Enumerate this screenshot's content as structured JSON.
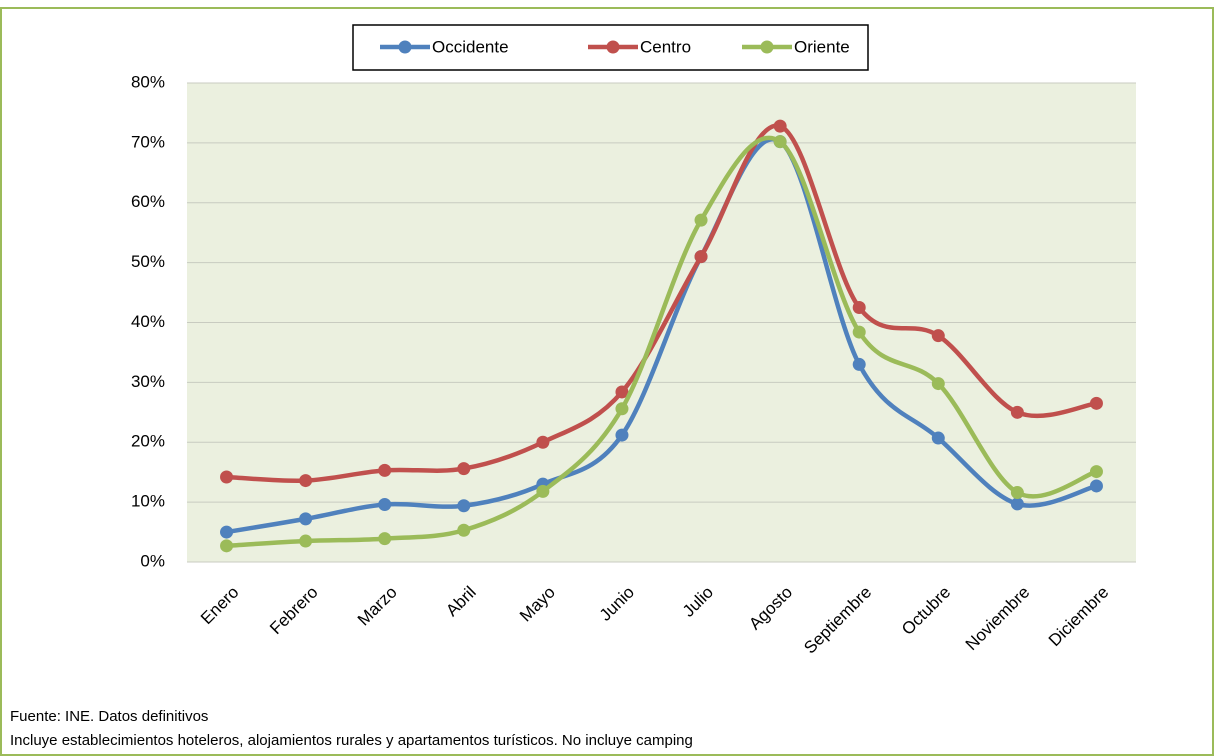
{
  "chart_data": {
    "type": "line",
    "smooth": true,
    "categories": [
      "Enero",
      "Febrero",
      "Marzo",
      "Abril",
      "Mayo",
      "Junio",
      "Julio",
      "Agosto",
      "Septiembre",
      "Octubre",
      "Noviembre",
      "Diciembre"
    ],
    "series": [
      {
        "name": "Occidente",
        "color": "#4f81bd",
        "values": [
          5.0,
          7.2,
          9.6,
          9.4,
          13.0,
          21.2,
          51.0,
          70.2,
          33.0,
          20.7,
          9.7,
          12.7
        ]
      },
      {
        "name": "Centro",
        "color": "#c0504d",
        "values": [
          14.2,
          13.6,
          15.3,
          15.6,
          20.0,
          28.4,
          51.0,
          72.8,
          42.5,
          37.8,
          25.0,
          26.5
        ]
      },
      {
        "name": "Oriente",
        "color": "#9bbb59",
        "values": [
          2.7,
          3.5,
          3.9,
          5.3,
          11.8,
          25.6,
          57.1,
          70.2,
          38.4,
          29.8,
          11.6,
          15.1
        ]
      }
    ],
    "ylim": [
      0,
      80
    ],
    "yticks": [
      {
        "value": 0,
        "label": "0%"
      },
      {
        "value": 10,
        "label": "10%"
      },
      {
        "value": 20,
        "label": "20%"
      },
      {
        "value": 30,
        "label": "30%"
      },
      {
        "value": 40,
        "label": "40%"
      },
      {
        "value": 50,
        "label": "50%"
      },
      {
        "value": 60,
        "label": "60%"
      },
      {
        "value": 70,
        "label": "70%"
      },
      {
        "value": 80,
        "label": "80%"
      }
    ],
    "grid": true,
    "legend": "top",
    "source": "Fuente: INE. Datos definitivos",
    "note": "Incluye establecimientos hoteleros, alojamientos rurales y apartamentos turísticos. No incluye camping"
  }
}
